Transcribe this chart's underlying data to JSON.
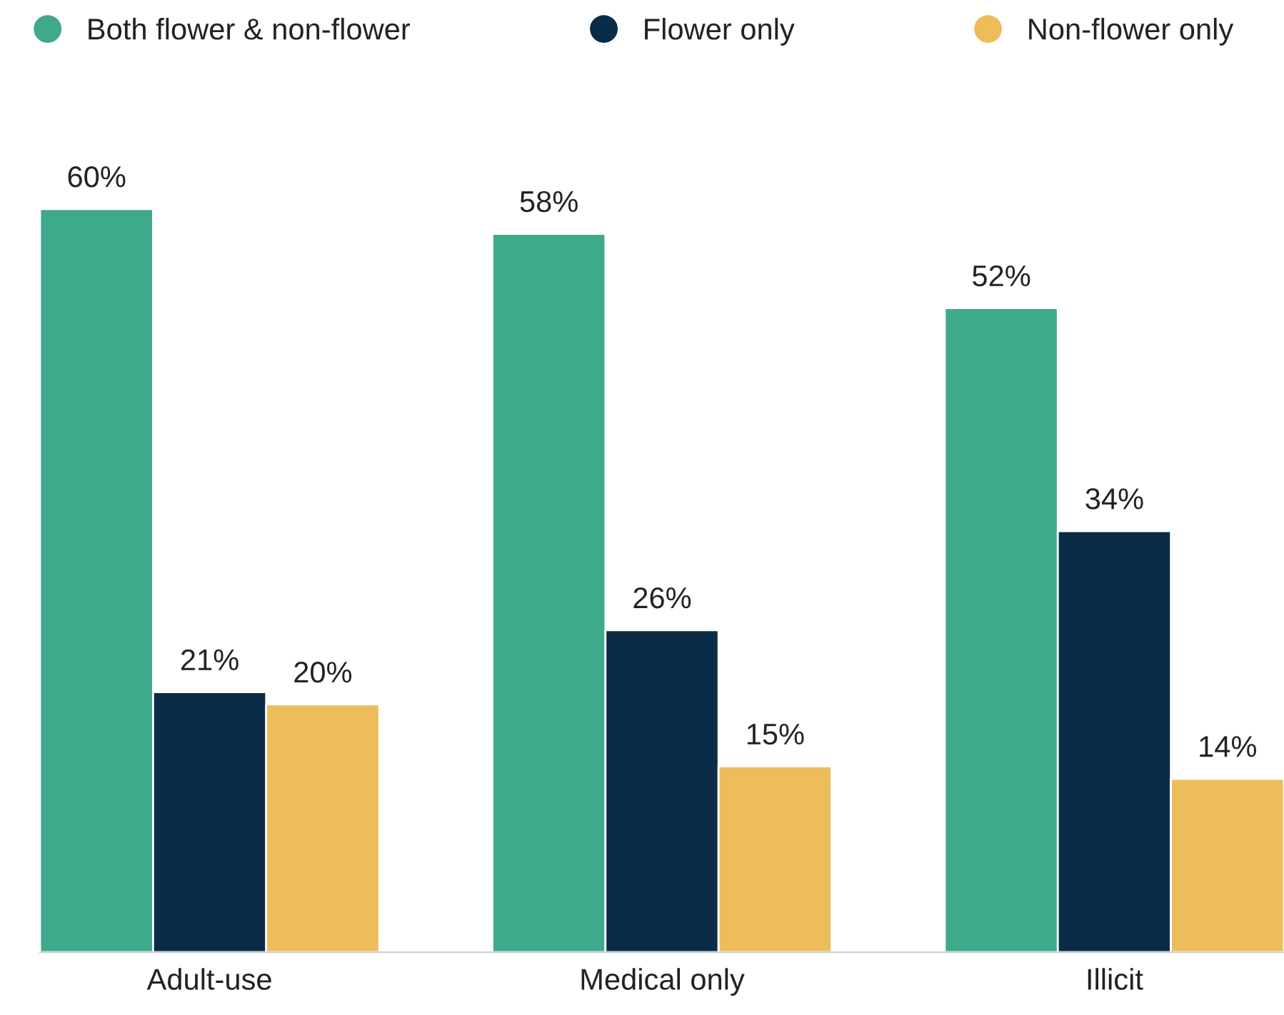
{
  "chart_data": {
    "type": "bar",
    "categories": [
      "Adult-use",
      "Medical only",
      "Illicit"
    ],
    "series": [
      {
        "name": "Both flower & non-flower",
        "color": "#3fa98b",
        "values": [
          60,
          58,
          52
        ],
        "value_labels": [
          "60%",
          "58%",
          "52%"
        ]
      },
      {
        "name": "Flower only",
        "color": "#0a2c47",
        "values": [
          21,
          26,
          34
        ],
        "value_labels": [
          "21%",
          "26%",
          "34%"
        ]
      },
      {
        "name": "Non-flower only",
        "color": "#ecbd5a",
        "values": [
          20,
          15,
          14
        ],
        "value_labels": [
          "20%",
          "15%",
          "14%"
        ]
      }
    ],
    "legend": "top",
    "grid": false
  }
}
